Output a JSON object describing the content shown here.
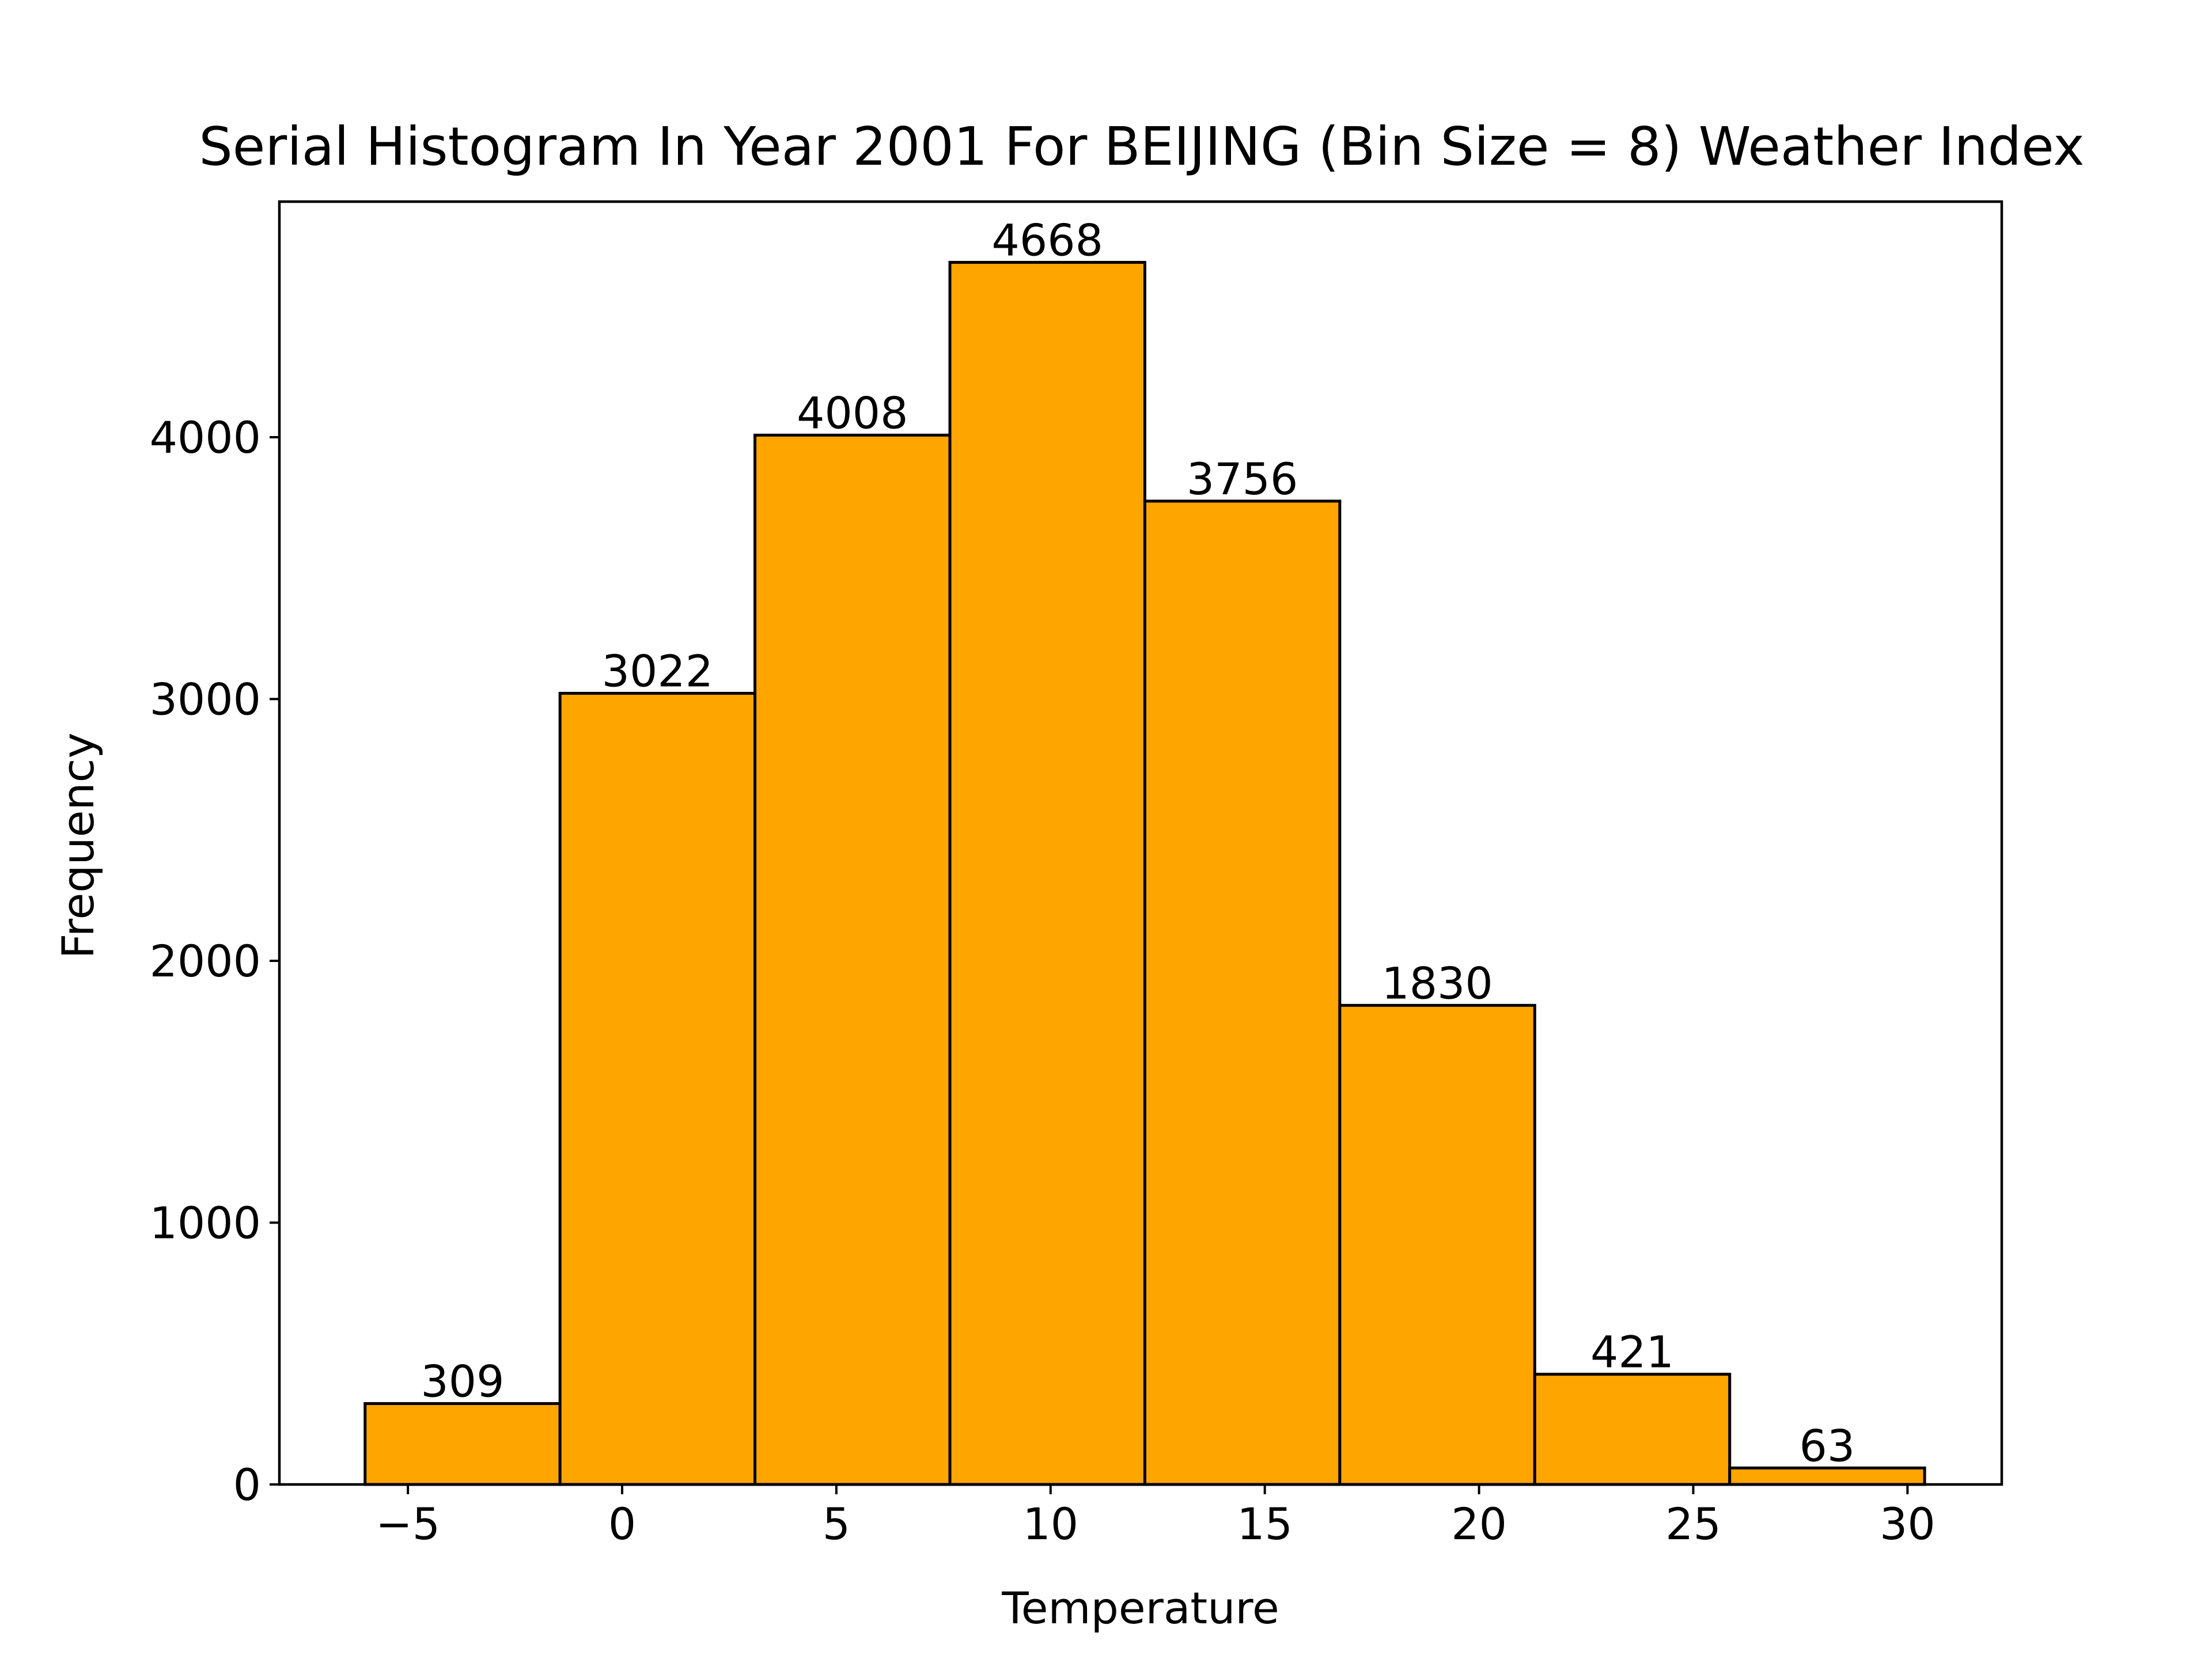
{
  "chart_data": {
    "type": "histogram",
    "title": "Serial Histogram In Year 2001 For BEIJING (Bin Size = 8) Weather Index",
    "xlabel": "Temperature",
    "ylabel": "Frequency",
    "bin_edges": [
      -6.0,
      -1.45,
      3.1,
      7.65,
      12.2,
      16.75,
      21.3,
      25.85,
      30.4
    ],
    "values": [
      309,
      3022,
      4008,
      4668,
      3756,
      1830,
      421,
      63
    ],
    "value_labels": [
      "309",
      "3022",
      "4008",
      "4668",
      "3756",
      "1830",
      "421",
      "63"
    ],
    "xlim": [
      -8.0,
      32.2
    ],
    "ylim": [
      0,
      4900
    ],
    "xticks": [
      -5,
      0,
      5,
      10,
      15,
      20,
      25,
      30
    ],
    "xtick_labels": [
      "−5",
      "0",
      "5",
      "10",
      "15",
      "20",
      "25",
      "30"
    ],
    "yticks": [
      0,
      1000,
      2000,
      3000,
      4000
    ],
    "ytick_labels": [
      "0",
      "1000",
      "2000",
      "3000",
      "4000"
    ],
    "bar_color": "#FFA500",
    "edge_color": "#000000",
    "grid": false
  }
}
